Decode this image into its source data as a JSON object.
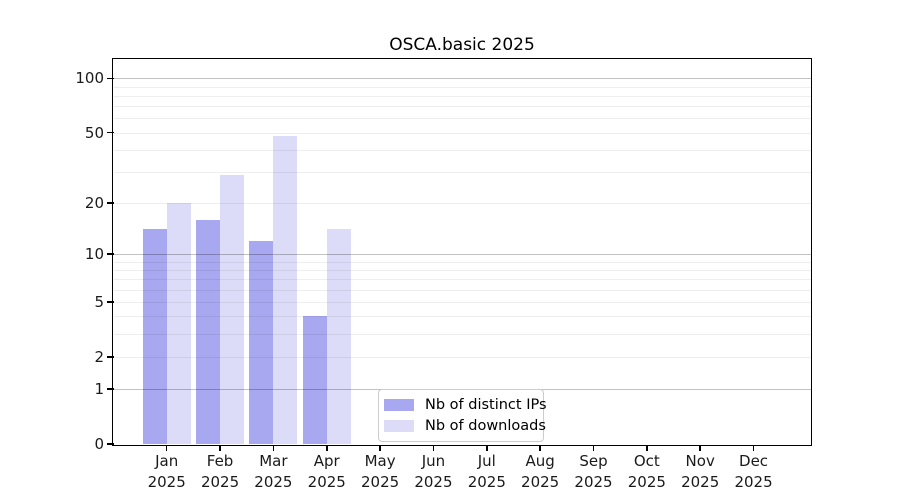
{
  "title": "OSCA.basic 2025",
  "chart_data": {
    "type": "bar",
    "title": "OSCA.basic 2025",
    "x_months": [
      "Jan",
      "Feb",
      "Mar",
      "Apr",
      "May",
      "Jun",
      "Jul",
      "Aug",
      "Sep",
      "Oct",
      "Nov",
      "Dec"
    ],
    "x_year": "2025",
    "series": [
      {
        "name": "Nb of distinct IPs",
        "color": "#a8a8f0",
        "values": [
          14,
          16,
          12,
          4,
          null,
          null,
          null,
          null,
          null,
          null,
          null,
          null
        ]
      },
      {
        "name": "Nb of downloads",
        "color": "#dcdcf8",
        "values": [
          20,
          29,
          48,
          14,
          null,
          null,
          null,
          null,
          null,
          null,
          null,
          null
        ]
      }
    ],
    "y_scale": "log1p",
    "y_ticks": [
      0,
      1,
      2,
      5,
      10,
      20,
      50,
      100
    ],
    "y_major_gridlines": [
      1,
      10,
      100
    ],
    "y_minor_gridlines": [
      2,
      3,
      4,
      5,
      6,
      7,
      8,
      9,
      20,
      30,
      40,
      50,
      60,
      70,
      80,
      90
    ],
    "ylim": [
      0,
      128
    ],
    "grid": true,
    "legend_position": "inside-bottom-center"
  }
}
